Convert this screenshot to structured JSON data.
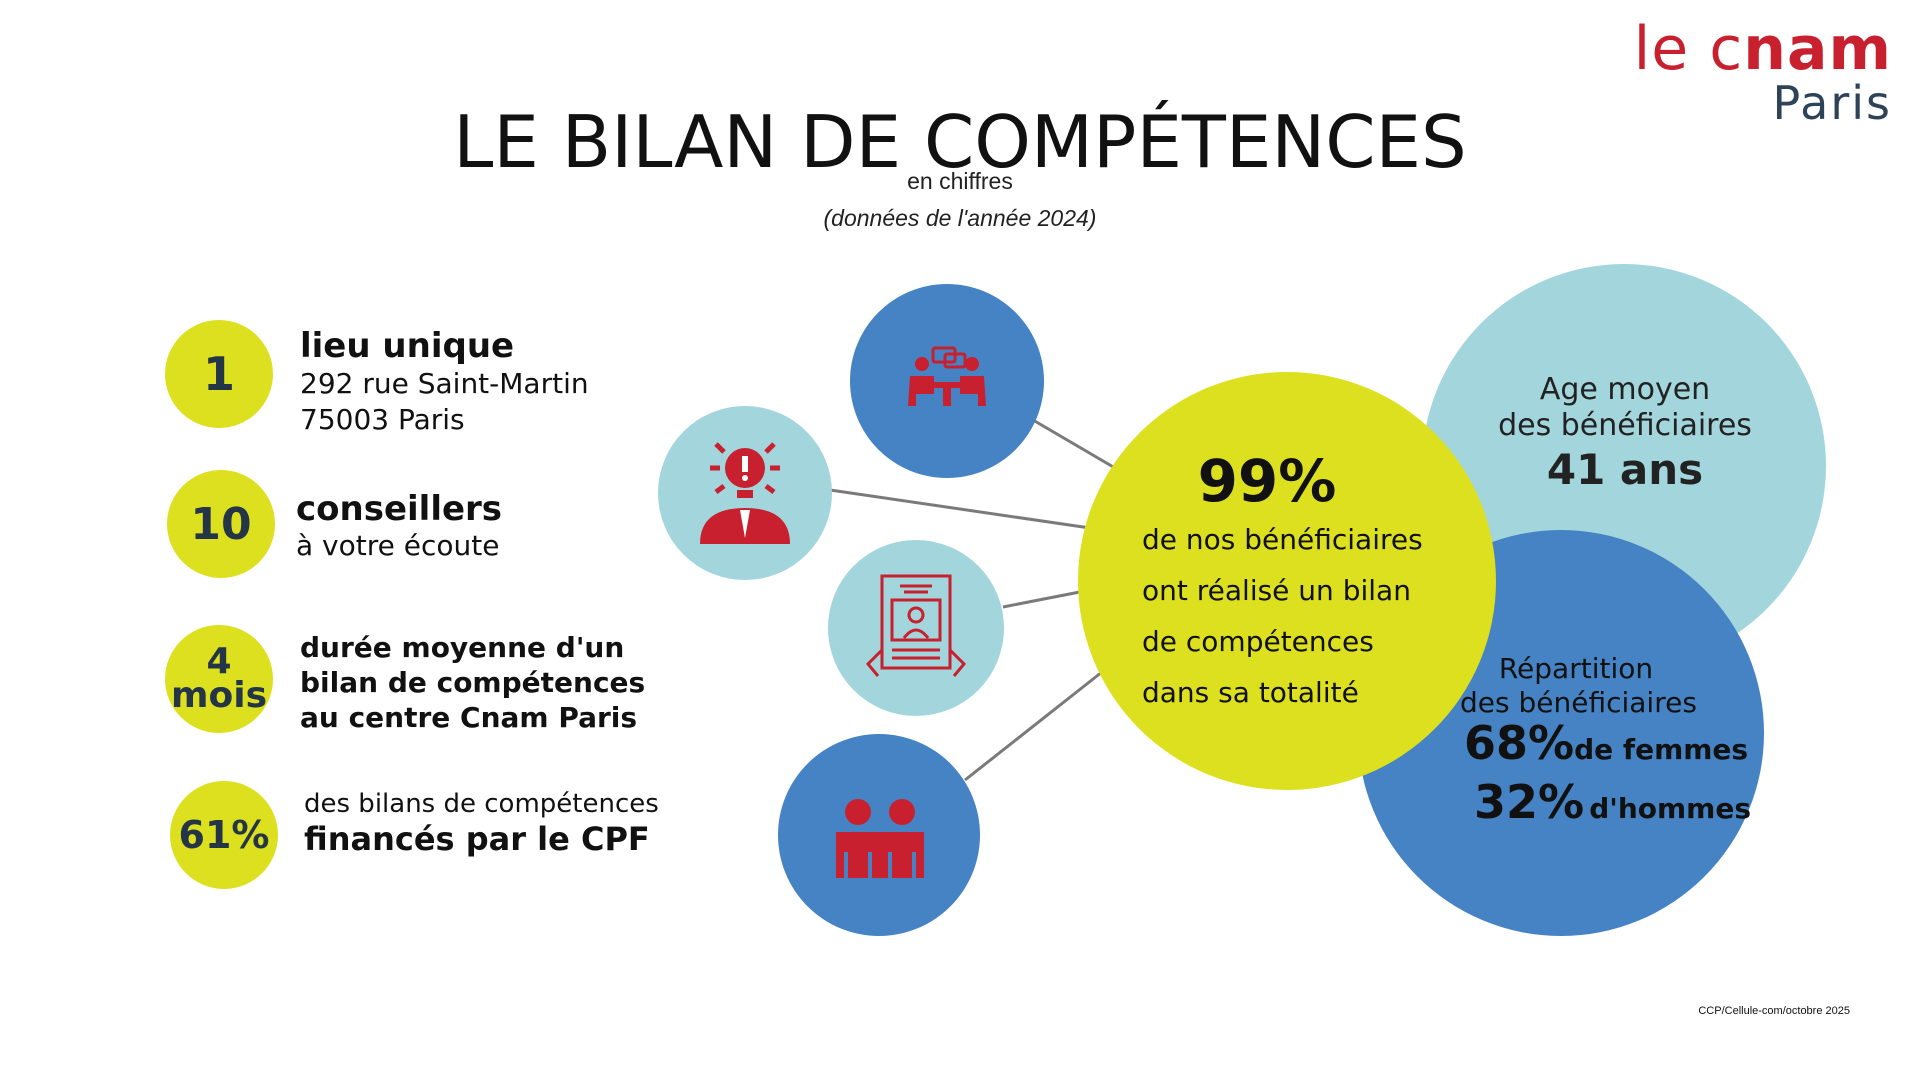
{
  "logo": {
    "line1_light": "le c",
    "line1_bold": "nam",
    "line2": "Paris"
  },
  "header": {
    "title": "LE BILAN DE COMPÉTENCES",
    "subtitle": "en chiffres",
    "note": "(données de l'année 2024)"
  },
  "stats": [
    {
      "value": "1",
      "label": "lieu unique",
      "detail1": "292 rue Saint-Martin",
      "detail2": "75003 Paris"
    },
    {
      "value": "10",
      "label": "conseillers",
      "detail1": "à votre écoute"
    },
    {
      "value_line1": "4",
      "value_line2": "mois",
      "line1": "durée moyenne d'un",
      "line2": "bilan de compétences",
      "line3": "au centre Cnam Paris"
    },
    {
      "value": "61%",
      "line1": "des bilans de compétences",
      "line2": "financés par le CPF"
    }
  ],
  "center": {
    "percent": "99%",
    "line1": "de nos bénéficiaires",
    "line2": "ont réalisé un bilan",
    "line3": "de compétences",
    "line4": "dans sa totalité"
  },
  "age": {
    "line1": "Age moyen",
    "line2": "des bénéficiaires",
    "value": "41 ans"
  },
  "gender": {
    "line1": "Répartition",
    "line2": "des bénéficiaires",
    "women_pct": "68%",
    "women_label": "de femmes",
    "men_pct": "32%",
    "men_label": "d'hommes"
  },
  "icons": [
    "meeting-icon",
    "idea-alert-icon",
    "document-profile-icon",
    "two-people-icon"
  ],
  "colors": {
    "yellow": "#dde01e",
    "light_blue": "#a2d6dc",
    "blue": "#4583c4",
    "red": "#c8202e",
    "navy": "#243547"
  },
  "footer": "CCP/Cellule-com/octobre 2025"
}
